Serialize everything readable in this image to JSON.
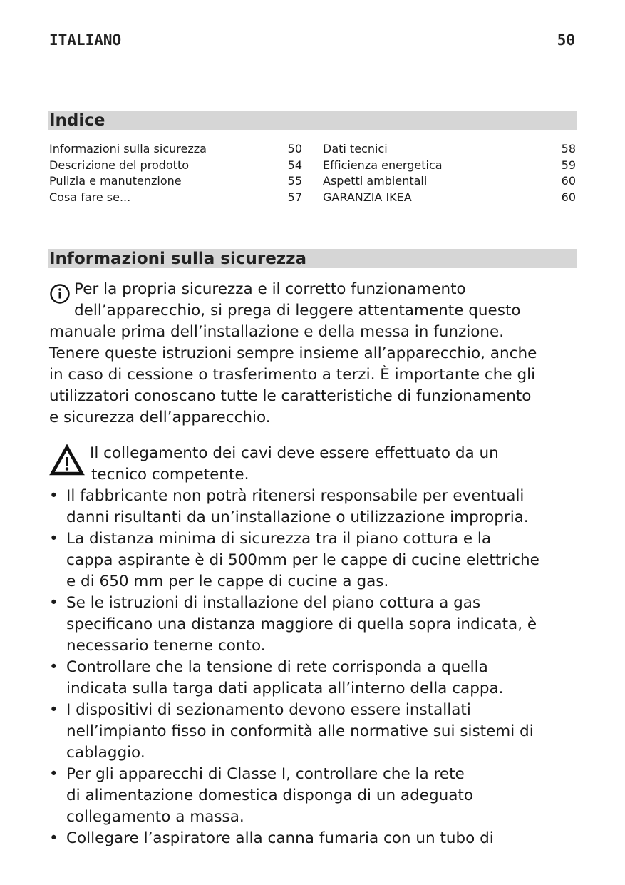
{
  "header": {
    "language": "ITALIANO",
    "page_number": "50"
  },
  "toc": {
    "title": "Indice",
    "left": [
      {
        "label": "Informazioni sulla sicurezza",
        "page": "50"
      },
      {
        "label": "Descrizione del prodotto",
        "page": "54"
      },
      {
        "label": "Pulizia e manutenzione",
        "page": "55"
      },
      {
        "label": "Cosa fare se...",
        "page": "57"
      }
    ],
    "right": [
      {
        "label": "Dati tecnici",
        "page": "58"
      },
      {
        "label": "Efficienza energetica",
        "page": "59"
      },
      {
        "label": "Aspetti ambientali",
        "page": "60"
      },
      {
        "label": "GARANZIA IKEA",
        "page": "60"
      }
    ]
  },
  "safety": {
    "title": "Informazioni sulla sicurezza",
    "info_icon": "info-circle-icon",
    "intro": [
      "Per la propria sicurezza e il corretto funzionamento",
      "dell’apparecchio, si prega di leggere attentamente questo",
      "manuale prima dell’installazione e della messa in funzione.",
      "Tenere queste istruzioni sempre insieme all’apparecchio, anche",
      "in caso di cessione o trasferimento a terzi. È importante che gli",
      "utilizzatori conoscano tutte le caratteristiche di funzionamento",
      "e sicurezza dell’apparecchio."
    ],
    "warning_icon": "warning-triangle-icon",
    "warning": [
      "Il collegamento dei cavi deve essere effettuato da un",
      "tecnico competente."
    ],
    "bullet_char": "•",
    "bullets": [
      [
        "Il fabbricante non potrà ritenersi responsabile per eventuali",
        "danni risultanti da un’installazione o utilizzazione impropria."
      ],
      [
        "La distanza minima di sicurezza tra il piano cottura e la",
        "cappa aspirante è di 500mm per le cappe di cucine elettriche",
        "e di 650 mm per le cappe di cucine a gas."
      ],
      [
        "Se le istruzioni di installazione del piano cottura a gas",
        "specificano una distanza maggiore di quella sopra indicata, è",
        "necessario tenerne conto."
      ],
      [
        "Controllare che la tensione di rete corrisponda a quella",
        "indicata sulla targa dati applicata all’interno della cappa."
      ],
      [
        "I dispositivi di sezionamento devono essere installati",
        "nell’impianto fisso in conformità alle normative sui sistemi di",
        "cablaggio."
      ],
      [
        "Per gli apparecchi di Classe I, controllare che la rete",
        "di alimentazione domestica disponga di un adeguato",
        "collegamento a massa."
      ],
      [
        "Collegare l’aspiratore alla canna fumaria con un tubo di"
      ]
    ]
  }
}
